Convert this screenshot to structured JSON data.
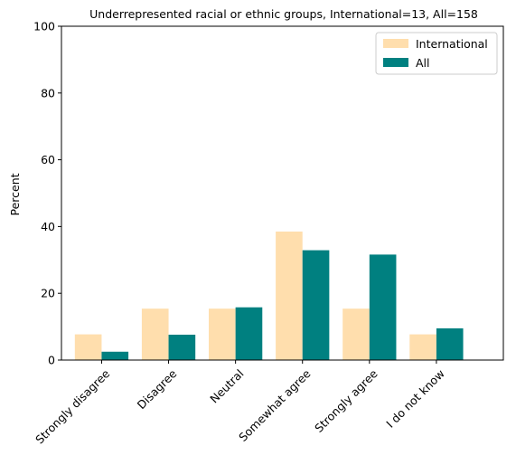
{
  "chart_data": {
    "type": "bar",
    "title": "Underrepresented racial or ethnic groups, International=13, All=158",
    "xlabel": "",
    "ylabel": "Percent",
    "ylim": [
      0,
      100
    ],
    "yticks": [
      0,
      20,
      40,
      60,
      80,
      100
    ],
    "grid": false,
    "legend_position": "top-right",
    "categories": [
      "Strongly disagree",
      "Disagree",
      "Neutral",
      "Somewhat agree",
      "Strongly agree",
      "I do not know"
    ],
    "series": [
      {
        "name": "International",
        "color": "#FFDEAD",
        "values": [
          7.7,
          15.4,
          15.4,
          38.5,
          15.4,
          7.7
        ]
      },
      {
        "name": "All",
        "color": "#008080",
        "values": [
          2.5,
          7.6,
          15.8,
          32.9,
          31.6,
          9.5
        ]
      }
    ]
  }
}
